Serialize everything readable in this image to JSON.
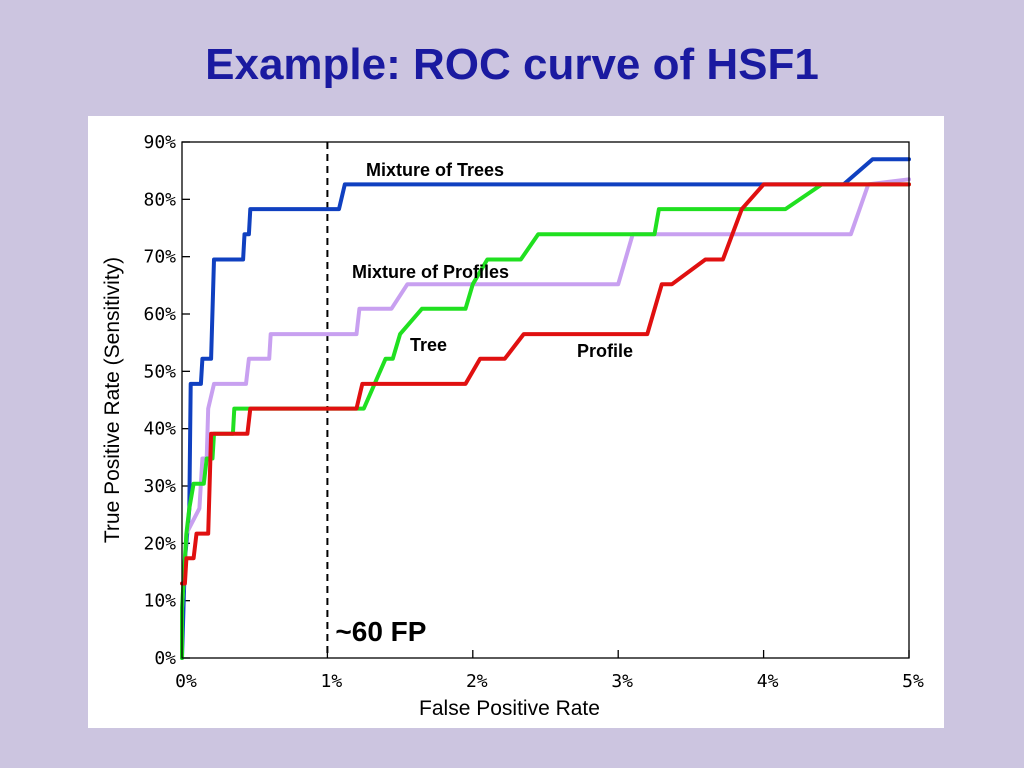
{
  "slide": {
    "title": "Example: ROC curve of HSF1"
  },
  "chart_data": {
    "type": "line",
    "title": "",
    "xlabel": "False Positive Rate",
    "ylabel": "True Positive Rate (Sensitivity)",
    "xlim": [
      0,
      5
    ],
    "ylim": [
      0,
      90
    ],
    "x_unit": "%",
    "y_unit": "%",
    "x_ticks": [
      "0%",
      "1%",
      "2%",
      "3%",
      "4%",
      "5%"
    ],
    "y_ticks": [
      "0%",
      "10%",
      "20%",
      "30%",
      "40%",
      "50%",
      "60%",
      "70%",
      "80%",
      "90%"
    ],
    "x_tick_values": [
      0,
      1,
      2,
      3,
      4,
      5
    ],
    "y_tick_values": [
      0,
      10,
      20,
      30,
      40,
      50,
      60,
      70,
      80,
      90
    ],
    "grid": false,
    "legend": "none",
    "reference_line": {
      "x": 1.0,
      "style": "dashed",
      "color": "#000000",
      "label": "~60 FP"
    },
    "series": [
      {
        "name": "Mixture of Trees",
        "color": "#1040c0",
        "points": [
          [
            0,
            0
          ],
          [
            0.02,
            17
          ],
          [
            0.05,
            26
          ],
          [
            0.06,
            47.8
          ],
          [
            0.13,
            47.8
          ],
          [
            0.14,
            52.2
          ],
          [
            0.2,
            52.2
          ],
          [
            0.22,
            69.5
          ],
          [
            0.42,
            69.5
          ],
          [
            0.43,
            73.9
          ],
          [
            0.46,
            73.9
          ],
          [
            0.47,
            78.3
          ],
          [
            1.08,
            78.3
          ],
          [
            1.12,
            82.6
          ],
          [
            4.55,
            82.6
          ],
          [
            4.75,
            87
          ],
          [
            5,
            87
          ]
        ]
      },
      {
        "name": "Mixture of Profiles",
        "color": "#c8a0f0",
        "points": [
          [
            0,
            8.7
          ],
          [
            0.02,
            17
          ],
          [
            0.03,
            21.7
          ],
          [
            0.12,
            26.1
          ],
          [
            0.14,
            34.8
          ],
          [
            0.17,
            34.8
          ],
          [
            0.18,
            43.5
          ],
          [
            0.22,
            47.8
          ],
          [
            0.44,
            47.8
          ],
          [
            0.46,
            52.2
          ],
          [
            0.6,
            52.2
          ],
          [
            0.61,
            56.5
          ],
          [
            1.2,
            56.5
          ],
          [
            1.22,
            60.9
          ],
          [
            1.44,
            60.9
          ],
          [
            1.55,
            65.2
          ],
          [
            3.0,
            65.2
          ],
          [
            3.1,
            73.9
          ],
          [
            4.6,
            73.9
          ],
          [
            4.72,
            82.6
          ],
          [
            5,
            83.5
          ]
        ]
      },
      {
        "name": "Tree",
        "color": "#20e020",
        "points": [
          [
            0,
            0
          ],
          [
            0,
            8.7
          ],
          [
            0.03,
            21.7
          ],
          [
            0.05,
            26.1
          ],
          [
            0.08,
            30.4
          ],
          [
            0.15,
            30.4
          ],
          [
            0.17,
            34.8
          ],
          [
            0.21,
            34.8
          ],
          [
            0.22,
            39.1
          ],
          [
            0.35,
            39.1
          ],
          [
            0.36,
            43.5
          ],
          [
            1.25,
            43.5
          ],
          [
            1.4,
            52.2
          ],
          [
            1.45,
            52.2
          ],
          [
            1.5,
            56.5
          ],
          [
            1.65,
            60.9
          ],
          [
            1.95,
            60.9
          ],
          [
            2.0,
            65.2
          ],
          [
            2.1,
            69.5
          ],
          [
            2.33,
            69.5
          ],
          [
            2.45,
            73.9
          ],
          [
            3.25,
            73.9
          ],
          [
            3.28,
            78.3
          ],
          [
            4.15,
            78.3
          ],
          [
            4.4,
            82.6
          ],
          [
            5,
            82.6
          ]
        ]
      },
      {
        "name": "Profile",
        "color": "#e01010",
        "points": [
          [
            0,
            13
          ],
          [
            0.02,
            13
          ],
          [
            0.03,
            17.4
          ],
          [
            0.08,
            17.4
          ],
          [
            0.1,
            21.7
          ],
          [
            0.18,
            21.7
          ],
          [
            0.2,
            39.1
          ],
          [
            0.45,
            39.1
          ],
          [
            0.47,
            43.5
          ],
          [
            1.2,
            43.5
          ],
          [
            1.24,
            47.8
          ],
          [
            1.95,
            47.8
          ],
          [
            2.05,
            52.2
          ],
          [
            2.22,
            52.2
          ],
          [
            2.35,
            56.5
          ],
          [
            3.2,
            56.5
          ],
          [
            3.3,
            65.2
          ],
          [
            3.37,
            65.2
          ],
          [
            3.6,
            69.5
          ],
          [
            3.72,
            69.5
          ],
          [
            3.85,
            78.3
          ],
          [
            4.0,
            82.6
          ],
          [
            5,
            82.6
          ]
        ]
      }
    ]
  }
}
